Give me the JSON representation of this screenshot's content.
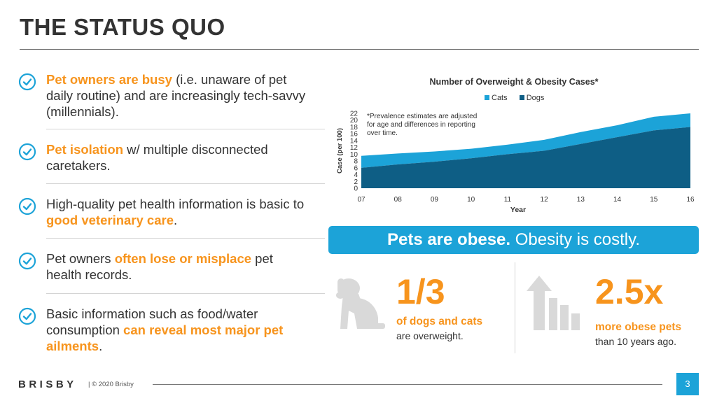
{
  "slide": {
    "title": "THE STATUS QUO"
  },
  "bullets": [
    {
      "pre": "",
      "hl": "Pet owners are busy",
      "post": " (i.e. unaware of pet daily routine) and are increasingly  tech-savvy (millennials)."
    },
    {
      "pre": "",
      "hl": "Pet isolation",
      "post": " w/ multiple disconnected caretakers."
    },
    {
      "pre": "High-quality pet health information is basic to ",
      "hl": "good veterinary care",
      "post": "."
    },
    {
      "pre": "Pet owners ",
      "hl": "often lose or misplace",
      "post": " pet health records."
    },
    {
      "pre": "Basic information such as food/water consumption ",
      "hl": "can reveal most major pet ailments",
      "post": "."
    }
  ],
  "chart_data": {
    "type": "area",
    "title": "Number of Overweight & Obesity Cases*",
    "xlabel": "Year",
    "ylabel": "Case (per 100)",
    "x": [
      "07",
      "08",
      "09",
      "10",
      "11",
      "12",
      "13",
      "14",
      "15",
      "16"
    ],
    "yticks": [
      "0",
      "2",
      "4",
      "6",
      "8",
      "10",
      "12",
      "14",
      "16",
      "18",
      "20",
      "22"
    ],
    "ylim": [
      0,
      22
    ],
    "stacked": true,
    "series": [
      {
        "name": "Dogs",
        "color": "#0E5E85",
        "values": [
          6,
          7,
          7.8,
          8.8,
          10,
          11,
          13,
          15,
          17,
          18
        ]
      },
      {
        "name": "Cats",
        "color": "#1CA3D8",
        "values": [
          3.5,
          3.2,
          3,
          2.8,
          2.8,
          3.2,
          3.5,
          3.5,
          4,
          4
        ]
      }
    ],
    "legend_position": "top-center",
    "note": "*Prevalence estimates are adjusted for age and differences in reporting over time."
  },
  "banner": {
    "bold": "Pets are obese.",
    "regular": " Obesity is costly."
  },
  "stats": [
    {
      "icon": "dog-icon",
      "value": "1/3",
      "line1": "of dogs and cats",
      "line2": "are overweight."
    },
    {
      "icon": "rising-bars-arrow-icon",
      "value": "2.5x",
      "line1": "more obese pets",
      "line2": "than 10 years ago."
    }
  ],
  "footer": {
    "brand": "BRISBY",
    "copyright": "|  © 2020 Brisby",
    "page": "3"
  },
  "colors": {
    "accent_orange": "#F7941D",
    "accent_blue": "#1CA3D8",
    "dark_blue": "#0E5E85",
    "icon_gray": "#d9d9d9"
  }
}
